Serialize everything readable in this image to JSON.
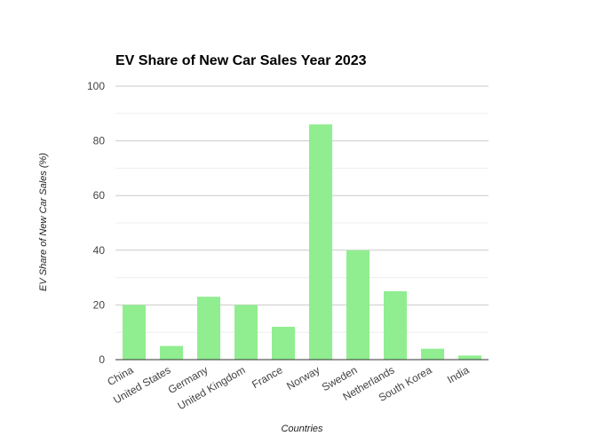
{
  "chart_data": {
    "type": "bar",
    "title": "EV Share of New Car Sales Year 2023",
    "xlabel": "Countries",
    "ylabel": "EV Share of New Car Sales (%)",
    "categories": [
      "China",
      "United States",
      "Germany",
      "United Kingdom",
      "France",
      "Norway",
      "Sweden",
      "Netherlands",
      "South Korea",
      "India"
    ],
    "values": [
      20,
      5,
      23,
      20,
      12,
      86,
      40,
      25,
      4,
      1.5
    ],
    "ylim": [
      0,
      100
    ],
    "yticks": [
      0,
      20,
      40,
      60,
      80,
      100
    ],
    "ytick_labels": [
      "0",
      "20",
      "40",
      "60",
      "80",
      "100"
    ],
    "grid": true,
    "minor_grid": true,
    "legend": "none",
    "colors": {
      "bar": "#90ee90",
      "grid_major": "#cccccc",
      "grid_minor": "#eeeeee",
      "axis": "#333333"
    }
  }
}
